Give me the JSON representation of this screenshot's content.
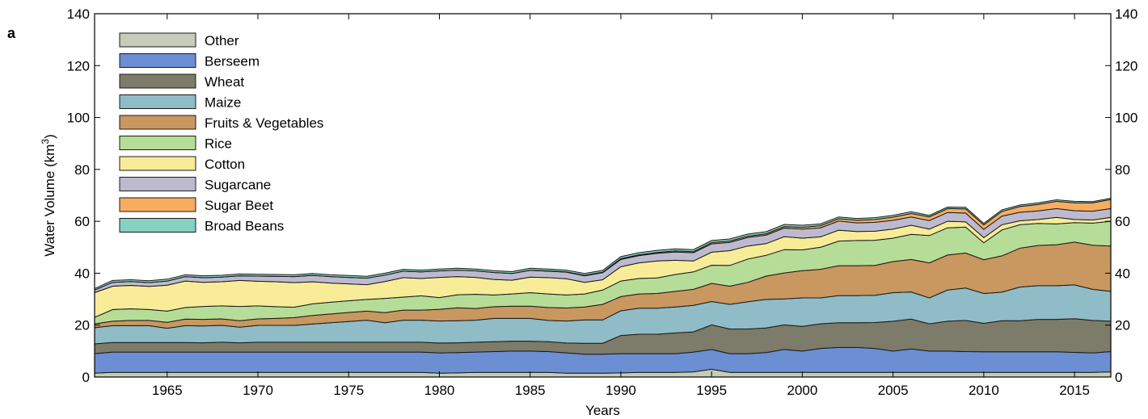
{
  "panel_label": "a",
  "chart_data": {
    "type": "area",
    "stacked": true,
    "xlabel": "Years",
    "ylabel_main": "Water Volume (km",
    "ylabel_sup": "3",
    "ylabel_end": ")",
    "xlim": [
      1961,
      2017
    ],
    "ylim": [
      0,
      140
    ],
    "x_ticks": [
      1965,
      1970,
      1975,
      1980,
      1985,
      1990,
      1995,
      2000,
      2005,
      2010,
      2015
    ],
    "y_ticks": [
      0,
      20,
      40,
      60,
      80,
      100,
      120,
      140
    ],
    "grid": false,
    "legend_position": "top-left",
    "x": [
      1961,
      1962,
      1963,
      1964,
      1965,
      1966,
      1967,
      1968,
      1969,
      1970,
      1971,
      1972,
      1973,
      1974,
      1975,
      1976,
      1977,
      1978,
      1979,
      1980,
      1981,
      1982,
      1983,
      1984,
      1985,
      1986,
      1987,
      1988,
      1989,
      1990,
      1991,
      1992,
      1993,
      1994,
      1995,
      1996,
      1997,
      1998,
      1999,
      2000,
      2001,
      2002,
      2003,
      2004,
      2005,
      2006,
      2007,
      2008,
      2009,
      2010,
      2011,
      2012,
      2013,
      2014,
      2015,
      2016,
      2017
    ],
    "series": [
      {
        "name": "Other",
        "color": "#c5ccb8",
        "values": [
          1.5,
          1.8,
          1.8,
          1.8,
          1.8,
          1.8,
          1.8,
          1.8,
          1.8,
          1.8,
          1.8,
          1.8,
          1.8,
          1.8,
          1.8,
          1.8,
          1.8,
          1.8,
          1.8,
          1.5,
          1.6,
          1.8,
          1.8,
          1.8,
          1.8,
          1.8,
          1.5,
          1.5,
          1.5,
          1.6,
          1.8,
          1.8,
          1.8,
          2.0,
          3.0,
          1.8,
          1.8,
          1.8,
          1.8,
          1.8,
          1.8,
          1.8,
          1.8,
          1.8,
          1.8,
          1.8,
          1.8,
          1.8,
          1.8,
          1.8,
          1.8,
          1.8,
          1.8,
          1.8,
          1.8,
          1.8,
          2.0
        ]
      },
      {
        "name": "Berseem",
        "color": "#6b8fd2",
        "values": [
          7.5,
          7.8,
          7.8,
          7.8,
          7.8,
          7.8,
          7.8,
          7.8,
          7.8,
          7.8,
          7.8,
          7.8,
          7.8,
          7.8,
          7.8,
          7.8,
          7.8,
          7.8,
          7.8,
          7.8,
          7.8,
          7.8,
          8.0,
          8.2,
          8.2,
          8.0,
          7.8,
          7.3,
          7.3,
          7.4,
          7.2,
          7.2,
          7.2,
          7.6,
          7.6,
          7.2,
          7.2,
          7.6,
          8.8,
          8.2,
          9.2,
          9.6,
          9.6,
          9.2,
          8.2,
          9.0,
          8.2,
          8.2,
          8.0,
          7.9,
          7.9,
          7.9,
          7.9,
          7.9,
          7.7,
          7.5,
          7.8
        ]
      },
      {
        "name": "Wheat",
        "color": "#7d7b69",
        "values": [
          3.8,
          3.7,
          3.7,
          3.7,
          3.7,
          3.7,
          3.6,
          3.8,
          3.6,
          3.8,
          3.8,
          3.8,
          3.8,
          3.8,
          3.8,
          3.8,
          3.8,
          3.8,
          3.8,
          3.8,
          3.8,
          3.8,
          3.8,
          3.8,
          3.8,
          3.8,
          3.8,
          4.2,
          4.2,
          7.0,
          7.5,
          7.5,
          8.0,
          7.8,
          9.5,
          9.5,
          9.5,
          9.5,
          9.5,
          9.5,
          9.5,
          9.5,
          9.5,
          10.0,
          11.5,
          11.5,
          10.5,
          11.5,
          12.0,
          11.0,
          12.0,
          12.0,
          12.5,
          12.5,
          13.0,
          12.5,
          11.7
        ]
      },
      {
        "name": "Maize",
        "color": "#8fbcc6",
        "values": [
          6.2,
          6.5,
          6.5,
          6.5,
          5.5,
          6.5,
          6.5,
          6.5,
          6.0,
          6.5,
          6.5,
          6.5,
          7.0,
          7.5,
          8.0,
          8.5,
          7.5,
          8.5,
          8.5,
          8.5,
          8.5,
          8.5,
          9.0,
          8.8,
          8.8,
          8.2,
          8.5,
          9.0,
          9.0,
          9.5,
          10.0,
          10.0,
          10.0,
          10.2,
          9.0,
          9.5,
          10.5,
          11.0,
          10.0,
          11.0,
          10.0,
          10.5,
          10.5,
          10.5,
          11.0,
          10.5,
          10.0,
          12.0,
          12.5,
          11.5,
          11.0,
          13.0,
          13.0,
          13.0,
          13.0,
          12.0,
          11.5
        ]
      },
      {
        "name": "Fruits & Vegetables",
        "color": "#c99760",
        "values": [
          1.5,
          1.7,
          2.0,
          2.0,
          2.3,
          2.5,
          2.5,
          2.5,
          2.5,
          2.5,
          2.7,
          3.0,
          3.3,
          3.4,
          3.5,
          3.5,
          3.9,
          3.9,
          3.9,
          4.5,
          5.0,
          4.5,
          4.5,
          4.7,
          4.7,
          5.0,
          5.0,
          5.0,
          6.0,
          5.5,
          5.5,
          5.7,
          6.0,
          6.2,
          7.0,
          7.0,
          7.5,
          9.0,
          10.0,
          10.5,
          11.0,
          11.5,
          11.5,
          11.5,
          12.0,
          12.5,
          13.5,
          13.5,
          13.5,
          13.0,
          14.0,
          15.0,
          15.5,
          15.8,
          16.5,
          17.0,
          17.5
        ]
      },
      {
        "name": "Rice",
        "color": "#b5dd98",
        "values": [
          2.5,
          4.5,
          4.5,
          4.2,
          4.3,
          4.5,
          5.0,
          5.0,
          5.5,
          5.0,
          4.5,
          4.0,
          4.5,
          4.5,
          4.5,
          4.5,
          5.5,
          5.0,
          5.5,
          4.5,
          5.0,
          5.5,
          4.5,
          4.7,
          5.2,
          5.2,
          5.0,
          5.0,
          5.5,
          6.0,
          6.0,
          6.0,
          6.5,
          6.7,
          7.0,
          8.0,
          9.0,
          8.0,
          9.0,
          8.0,
          8.5,
          9.5,
          9.7,
          9.7,
          9.0,
          9.7,
          10.5,
          10.5,
          10.0,
          6.5,
          10.0,
          9.0,
          8.5,
          8.0,
          7.5,
          8.5,
          9.5
        ]
      },
      {
        "name": "Cotton",
        "color": "#f8ec99",
        "values": [
          9.5,
          9.0,
          9.0,
          8.9,
          10.0,
          10.2,
          9.3,
          9.3,
          10.0,
          9.5,
          9.6,
          9.5,
          8.5,
          7.4,
          6.5,
          5.7,
          6.5,
          7.5,
          6.7,
          7.8,
          7.0,
          6.5,
          6.0,
          5.3,
          6.0,
          6.3,
          6.3,
          4.5,
          4.0,
          5.5,
          6.0,
          6.5,
          5.5,
          4.2,
          5.0,
          5.7,
          5.0,
          4.5,
          5.0,
          4.5,
          4.0,
          4.2,
          3.5,
          3.5,
          3.5,
          3.5,
          2.5,
          2.5,
          2.0,
          2.0,
          2.0,
          1.5,
          1.5,
          2.5,
          1.2,
          1.2,
          1.5
        ]
      },
      {
        "name": "Sugarcane",
        "color": "#bdbad0",
        "values": [
          1.0,
          1.5,
          1.5,
          1.5,
          1.6,
          1.7,
          1.8,
          1.8,
          1.8,
          2.0,
          2.1,
          2.3,
          2.5,
          2.5,
          2.5,
          2.5,
          2.5,
          2.5,
          2.5,
          2.5,
          2.5,
          2.5,
          2.7,
          2.6,
          2.6,
          2.5,
          2.5,
          2.5,
          2.7,
          2.8,
          2.8,
          3.0,
          3.2,
          3.2,
          3.2,
          3.2,
          3.3,
          3.3,
          3.3,
          3.5,
          3.5,
          3.5,
          3.3,
          3.4,
          3.4,
          3.2,
          3.3,
          3.4,
          3.4,
          3.2,
          3.3,
          3.3,
          3.3,
          3.4,
          3.4,
          3.4,
          3.4
        ]
      },
      {
        "name": "Sugar Beet",
        "color": "#f6ad60",
        "values": [
          0,
          0,
          0,
          0,
          0,
          0,
          0,
          0,
          0,
          0,
          0,
          0,
          0,
          0,
          0,
          0,
          0,
          0,
          0,
          0,
          0,
          0,
          0,
          0,
          0.1,
          0.1,
          0.1,
          0.2,
          0.2,
          0.3,
          0.3,
          0.3,
          0.4,
          0.4,
          0.5,
          0.5,
          0.5,
          0.5,
          0.6,
          0.7,
          0.8,
          0.9,
          1.0,
          1.1,
          1.2,
          1.3,
          1.4,
          1.5,
          1.6,
          1.7,
          1.8,
          2.2,
          2.5,
          2.8,
          3.0,
          3.2,
          3.5
        ]
      },
      {
        "name": "Broad Beans",
        "color": "#85d1c2",
        "values": [
          0.6,
          0.7,
          0.7,
          0.7,
          0.7,
          0.7,
          0.7,
          0.7,
          0.7,
          0.7,
          0.7,
          0.7,
          0.7,
          0.7,
          0.7,
          0.7,
          0.7,
          0.7,
          0.7,
          0.7,
          0.7,
          0.7,
          0.7,
          0.7,
          0.7,
          0.7,
          0.7,
          0.7,
          0.7,
          0.8,
          0.8,
          0.8,
          0.8,
          0.8,
          0.8,
          0.8,
          0.8,
          0.8,
          0.8,
          0.8,
          0.7,
          0.7,
          0.7,
          0.7,
          0.7,
          0.7,
          0.6,
          0.6,
          0.6,
          0.6,
          0.6,
          0.6,
          0.6,
          0.6,
          0.6,
          0.5,
          0.5
        ]
      }
    ]
  }
}
